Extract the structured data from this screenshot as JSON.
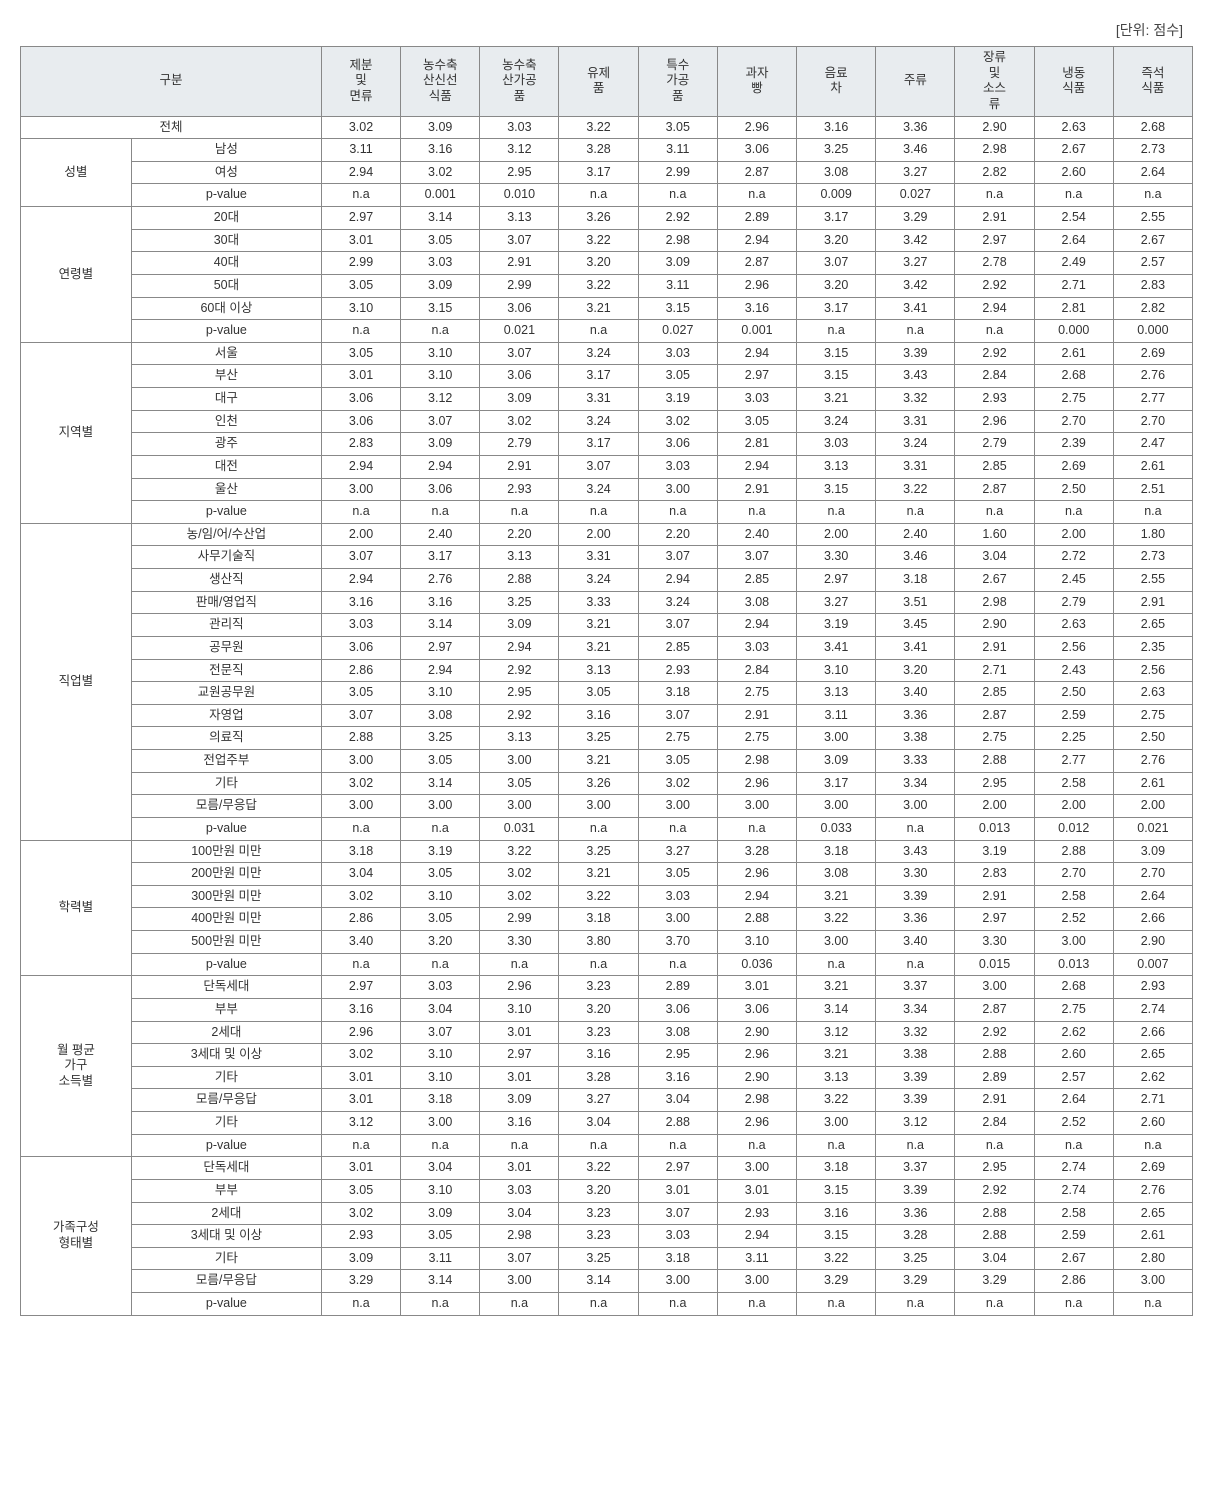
{
  "unit_label": "[단위: 점수]",
  "columns": [
    {
      "key": "gubun",
      "label": "구분",
      "colspan": 2
    },
    {
      "key": "c1",
      "label": "제분\n및\n면류"
    },
    {
      "key": "c2",
      "label": "농수축\n산신선\n식품"
    },
    {
      "key": "c3",
      "label": "농수축\n산가공\n품"
    },
    {
      "key": "c4",
      "label": "유제\n품"
    },
    {
      "key": "c5",
      "label": "특수\n가공\n품"
    },
    {
      "key": "c6",
      "label": "과자\n빵"
    },
    {
      "key": "c7",
      "label": "음료\n차"
    },
    {
      "key": "c8",
      "label": "주류"
    },
    {
      "key": "c9",
      "label": "장류\n및\n소스\n류"
    },
    {
      "key": "c10",
      "label": "냉동\n식품"
    },
    {
      "key": "c11",
      "label": "즉석\n식품"
    }
  ],
  "total_row": {
    "label": "전체",
    "values": [
      "3.02",
      "3.09",
      "3.03",
      "3.22",
      "3.05",
      "2.96",
      "3.16",
      "3.36",
      "2.90",
      "2.63",
      "2.68"
    ]
  },
  "groups": [
    {
      "label": "성별",
      "rows": [
        {
          "label": "남성",
          "values": [
            "3.11",
            "3.16",
            "3.12",
            "3.28",
            "3.11",
            "3.06",
            "3.25",
            "3.46",
            "2.98",
            "2.67",
            "2.73"
          ]
        },
        {
          "label": "여성",
          "values": [
            "2.94",
            "3.02",
            "2.95",
            "3.17",
            "2.99",
            "2.87",
            "3.08",
            "3.27",
            "2.82",
            "2.60",
            "2.64"
          ]
        },
        {
          "label": "p-value",
          "values": [
            "n.a",
            "0.001",
            "0.010",
            "n.a",
            "n.a",
            "n.a",
            "0.009",
            "0.027",
            "n.a",
            "n.a",
            "n.a"
          ]
        }
      ]
    },
    {
      "label": "연령별",
      "rows": [
        {
          "label": "20대",
          "values": [
            "2.97",
            "3.14",
            "3.13",
            "3.26",
            "2.92",
            "2.89",
            "3.17",
            "3.29",
            "2.91",
            "2.54",
            "2.55"
          ]
        },
        {
          "label": "30대",
          "values": [
            "3.01",
            "3.05",
            "3.07",
            "3.22",
            "2.98",
            "2.94",
            "3.20",
            "3.42",
            "2.97",
            "2.64",
            "2.67"
          ]
        },
        {
          "label": "40대",
          "values": [
            "2.99",
            "3.03",
            "2.91",
            "3.20",
            "3.09",
            "2.87",
            "3.07",
            "3.27",
            "2.78",
            "2.49",
            "2.57"
          ]
        },
        {
          "label": "50대",
          "values": [
            "3.05",
            "3.09",
            "2.99",
            "3.22",
            "3.11",
            "2.96",
            "3.20",
            "3.42",
            "2.92",
            "2.71",
            "2.83"
          ]
        },
        {
          "label": "60대 이상",
          "values": [
            "3.10",
            "3.15",
            "3.06",
            "3.21",
            "3.15",
            "3.16",
            "3.17",
            "3.41",
            "2.94",
            "2.81",
            "2.82"
          ]
        },
        {
          "label": "p-value",
          "values": [
            "n.a",
            "n.a",
            "0.021",
            "n.a",
            "0.027",
            "0.001",
            "n.a",
            "n.a",
            "n.a",
            "0.000",
            "0.000"
          ]
        }
      ]
    },
    {
      "label": "지역별",
      "rows": [
        {
          "label": "서울",
          "values": [
            "3.05",
            "3.10",
            "3.07",
            "3.24",
            "3.03",
            "2.94",
            "3.15",
            "3.39",
            "2.92",
            "2.61",
            "2.69"
          ]
        },
        {
          "label": "부산",
          "values": [
            "3.01",
            "3.10",
            "3.06",
            "3.17",
            "3.05",
            "2.97",
            "3.15",
            "3.43",
            "2.84",
            "2.68",
            "2.76"
          ]
        },
        {
          "label": "대구",
          "values": [
            "3.06",
            "3.12",
            "3.09",
            "3.31",
            "3.19",
            "3.03",
            "3.21",
            "3.32",
            "2.93",
            "2.75",
            "2.77"
          ]
        },
        {
          "label": "인천",
          "values": [
            "3.06",
            "3.07",
            "3.02",
            "3.24",
            "3.02",
            "3.05",
            "3.24",
            "3.31",
            "2.96",
            "2.70",
            "2.70"
          ]
        },
        {
          "label": "광주",
          "values": [
            "2.83",
            "3.09",
            "2.79",
            "3.17",
            "3.06",
            "2.81",
            "3.03",
            "3.24",
            "2.79",
            "2.39",
            "2.47"
          ]
        },
        {
          "label": "대전",
          "values": [
            "2.94",
            "2.94",
            "2.91",
            "3.07",
            "3.03",
            "2.94",
            "3.13",
            "3.31",
            "2.85",
            "2.69",
            "2.61"
          ]
        },
        {
          "label": "울산",
          "values": [
            "3.00",
            "3.06",
            "2.93",
            "3.24",
            "3.00",
            "2.91",
            "3.15",
            "3.22",
            "2.87",
            "2.50",
            "2.51"
          ]
        },
        {
          "label": "p-value",
          "values": [
            "n.a",
            "n.a",
            "n.a",
            "n.a",
            "n.a",
            "n.a",
            "n.a",
            "n.a",
            "n.a",
            "n.a",
            "n.a"
          ]
        }
      ]
    },
    {
      "label": "직업별",
      "rows": [
        {
          "label": "농/임/어/수산업",
          "values": [
            "2.00",
            "2.40",
            "2.20",
            "2.00",
            "2.20",
            "2.40",
            "2.00",
            "2.40",
            "1.60",
            "2.00",
            "1.80"
          ]
        },
        {
          "label": "사무기술직",
          "values": [
            "3.07",
            "3.17",
            "3.13",
            "3.31",
            "3.07",
            "3.07",
            "3.30",
            "3.46",
            "3.04",
            "2.72",
            "2.73"
          ]
        },
        {
          "label": "생산직",
          "values": [
            "2.94",
            "2.76",
            "2.88",
            "3.24",
            "2.94",
            "2.85",
            "2.97",
            "3.18",
            "2.67",
            "2.45",
            "2.55"
          ]
        },
        {
          "label": "판매/영업직",
          "values": [
            "3.16",
            "3.16",
            "3.25",
            "3.33",
            "3.24",
            "3.08",
            "3.27",
            "3.51",
            "2.98",
            "2.79",
            "2.91"
          ]
        },
        {
          "label": "관리직",
          "values": [
            "3.03",
            "3.14",
            "3.09",
            "3.21",
            "3.07",
            "2.94",
            "3.19",
            "3.45",
            "2.90",
            "2.63",
            "2.65"
          ]
        },
        {
          "label": "공무원",
          "values": [
            "3.06",
            "2.97",
            "2.94",
            "3.21",
            "2.85",
            "3.03",
            "3.41",
            "3.41",
            "2.91",
            "2.56",
            "2.35"
          ]
        },
        {
          "label": "전문직",
          "values": [
            "2.86",
            "2.94",
            "2.92",
            "3.13",
            "2.93",
            "2.84",
            "3.10",
            "3.20",
            "2.71",
            "2.43",
            "2.56"
          ]
        },
        {
          "label": "교원공무원",
          "values": [
            "3.05",
            "3.10",
            "2.95",
            "3.05",
            "3.18",
            "2.75",
            "3.13",
            "3.40",
            "2.85",
            "2.50",
            "2.63"
          ]
        },
        {
          "label": "자영업",
          "values": [
            "3.07",
            "3.08",
            "2.92",
            "3.16",
            "3.07",
            "2.91",
            "3.11",
            "3.36",
            "2.87",
            "2.59",
            "2.75"
          ]
        },
        {
          "label": "의료직",
          "values": [
            "2.88",
            "3.25",
            "3.13",
            "3.25",
            "2.75",
            "2.75",
            "3.00",
            "3.38",
            "2.75",
            "2.25",
            "2.50"
          ]
        },
        {
          "label": "전업주부",
          "values": [
            "3.00",
            "3.05",
            "3.00",
            "3.21",
            "3.05",
            "2.98",
            "3.09",
            "3.33",
            "2.88",
            "2.77",
            "2.76"
          ]
        },
        {
          "label": "기타",
          "values": [
            "3.02",
            "3.14",
            "3.05",
            "3.26",
            "3.02",
            "2.96",
            "3.17",
            "3.34",
            "2.95",
            "2.58",
            "2.61"
          ]
        },
        {
          "label": "모름/무응답",
          "values": [
            "3.00",
            "3.00",
            "3.00",
            "3.00",
            "3.00",
            "3.00",
            "3.00",
            "3.00",
            "2.00",
            "2.00",
            "2.00"
          ]
        },
        {
          "label": "p-value",
          "values": [
            "n.a",
            "n.a",
            "0.031",
            "n.a",
            "n.a",
            "n.a",
            "0.033",
            "n.a",
            "0.013",
            "0.012",
            "0.021"
          ]
        }
      ]
    },
    {
      "label": "학력별",
      "rows": [
        {
          "label": "100만원 미만",
          "values": [
            "3.18",
            "3.19",
            "3.22",
            "3.25",
            "3.27",
            "3.28",
            "3.18",
            "3.43",
            "3.19",
            "2.88",
            "3.09"
          ]
        },
        {
          "label": "200만원 미만",
          "values": [
            "3.04",
            "3.05",
            "3.02",
            "3.21",
            "3.05",
            "2.96",
            "3.08",
            "3.30",
            "2.83",
            "2.70",
            "2.70"
          ]
        },
        {
          "label": "300만원 미만",
          "values": [
            "3.02",
            "3.10",
            "3.02",
            "3.22",
            "3.03",
            "2.94",
            "3.21",
            "3.39",
            "2.91",
            "2.58",
            "2.64"
          ]
        },
        {
          "label": "400만원 미만",
          "values": [
            "2.86",
            "3.05",
            "2.99",
            "3.18",
            "3.00",
            "2.88",
            "3.22",
            "3.36",
            "2.97",
            "2.52",
            "2.66"
          ]
        },
        {
          "label": "500만원 미만",
          "values": [
            "3.40",
            "3.20",
            "3.30",
            "3.80",
            "3.70",
            "3.10",
            "3.00",
            "3.40",
            "3.30",
            "3.00",
            "2.90"
          ]
        },
        {
          "label": "p-value",
          "values": [
            "n.a",
            "n.a",
            "n.a",
            "n.a",
            "n.a",
            "0.036",
            "n.a",
            "n.a",
            "0.015",
            "0.013",
            "0.007"
          ]
        }
      ]
    },
    {
      "label": "월 평균\n가구\n소득별",
      "rows": [
        {
          "label": "단독세대",
          "values": [
            "2.97",
            "3.03",
            "2.96",
            "3.23",
            "2.89",
            "3.01",
            "3.21",
            "3.37",
            "3.00",
            "2.68",
            "2.93"
          ]
        },
        {
          "label": "부부",
          "values": [
            "3.16",
            "3.04",
            "3.10",
            "3.20",
            "3.06",
            "3.06",
            "3.14",
            "3.34",
            "2.87",
            "2.75",
            "2.74"
          ]
        },
        {
          "label": "2세대",
          "values": [
            "2.96",
            "3.07",
            "3.01",
            "3.23",
            "3.08",
            "2.90",
            "3.12",
            "3.32",
            "2.92",
            "2.62",
            "2.66"
          ]
        },
        {
          "label": "3세대 및 이상",
          "values": [
            "3.02",
            "3.10",
            "2.97",
            "3.16",
            "2.95",
            "2.96",
            "3.21",
            "3.38",
            "2.88",
            "2.60",
            "2.65"
          ]
        },
        {
          "label": "기타",
          "values": [
            "3.01",
            "3.10",
            "3.01",
            "3.28",
            "3.16",
            "2.90",
            "3.13",
            "3.39",
            "2.89",
            "2.57",
            "2.62"
          ]
        },
        {
          "label": "모름/무응답",
          "values": [
            "3.01",
            "3.18",
            "3.09",
            "3.27",
            "3.04",
            "2.98",
            "3.22",
            "3.39",
            "2.91",
            "2.64",
            "2.71"
          ]
        },
        {
          "label": "기타",
          "values": [
            "3.12",
            "3.00",
            "3.16",
            "3.04",
            "2.88",
            "2.96",
            "3.00",
            "3.12",
            "2.84",
            "2.52",
            "2.60"
          ]
        },
        {
          "label": "p-value",
          "values": [
            "n.a",
            "n.a",
            "n.a",
            "n.a",
            "n.a",
            "n.a",
            "n.a",
            "n.a",
            "n.a",
            "n.a",
            "n.a"
          ]
        }
      ]
    },
    {
      "label": "가족구성\n형태별",
      "rows": [
        {
          "label": "단독세대",
          "values": [
            "3.01",
            "3.04",
            "3.01",
            "3.22",
            "2.97",
            "3.00",
            "3.18",
            "3.37",
            "2.95",
            "2.74",
            "2.69"
          ]
        },
        {
          "label": "부부",
          "values": [
            "3.05",
            "3.10",
            "3.03",
            "3.20",
            "3.01",
            "3.01",
            "3.15",
            "3.39",
            "2.92",
            "2.74",
            "2.76"
          ]
        },
        {
          "label": "2세대",
          "values": [
            "3.02",
            "3.09",
            "3.04",
            "3.23",
            "3.07",
            "2.93",
            "3.16",
            "3.36",
            "2.88",
            "2.58",
            "2.65"
          ]
        },
        {
          "label": "3세대 및 이상",
          "values": [
            "2.93",
            "3.05",
            "2.98",
            "3.23",
            "3.03",
            "2.94",
            "3.15",
            "3.28",
            "2.88",
            "2.59",
            "2.61"
          ]
        },
        {
          "label": "기타",
          "values": [
            "3.09",
            "3.11",
            "3.07",
            "3.25",
            "3.18",
            "3.11",
            "3.22",
            "3.25",
            "3.04",
            "2.67",
            "2.80"
          ]
        },
        {
          "label": "모름/무응답",
          "values": [
            "3.29",
            "3.14",
            "3.00",
            "3.14",
            "3.00",
            "3.00",
            "3.29",
            "3.29",
            "3.29",
            "2.86",
            "3.00"
          ]
        },
        {
          "label": "p-value",
          "values": [
            "n.a",
            "n.a",
            "n.a",
            "n.a",
            "n.a",
            "n.a",
            "n.a",
            "n.a",
            "n.a",
            "n.a",
            "n.a"
          ]
        }
      ]
    }
  ]
}
